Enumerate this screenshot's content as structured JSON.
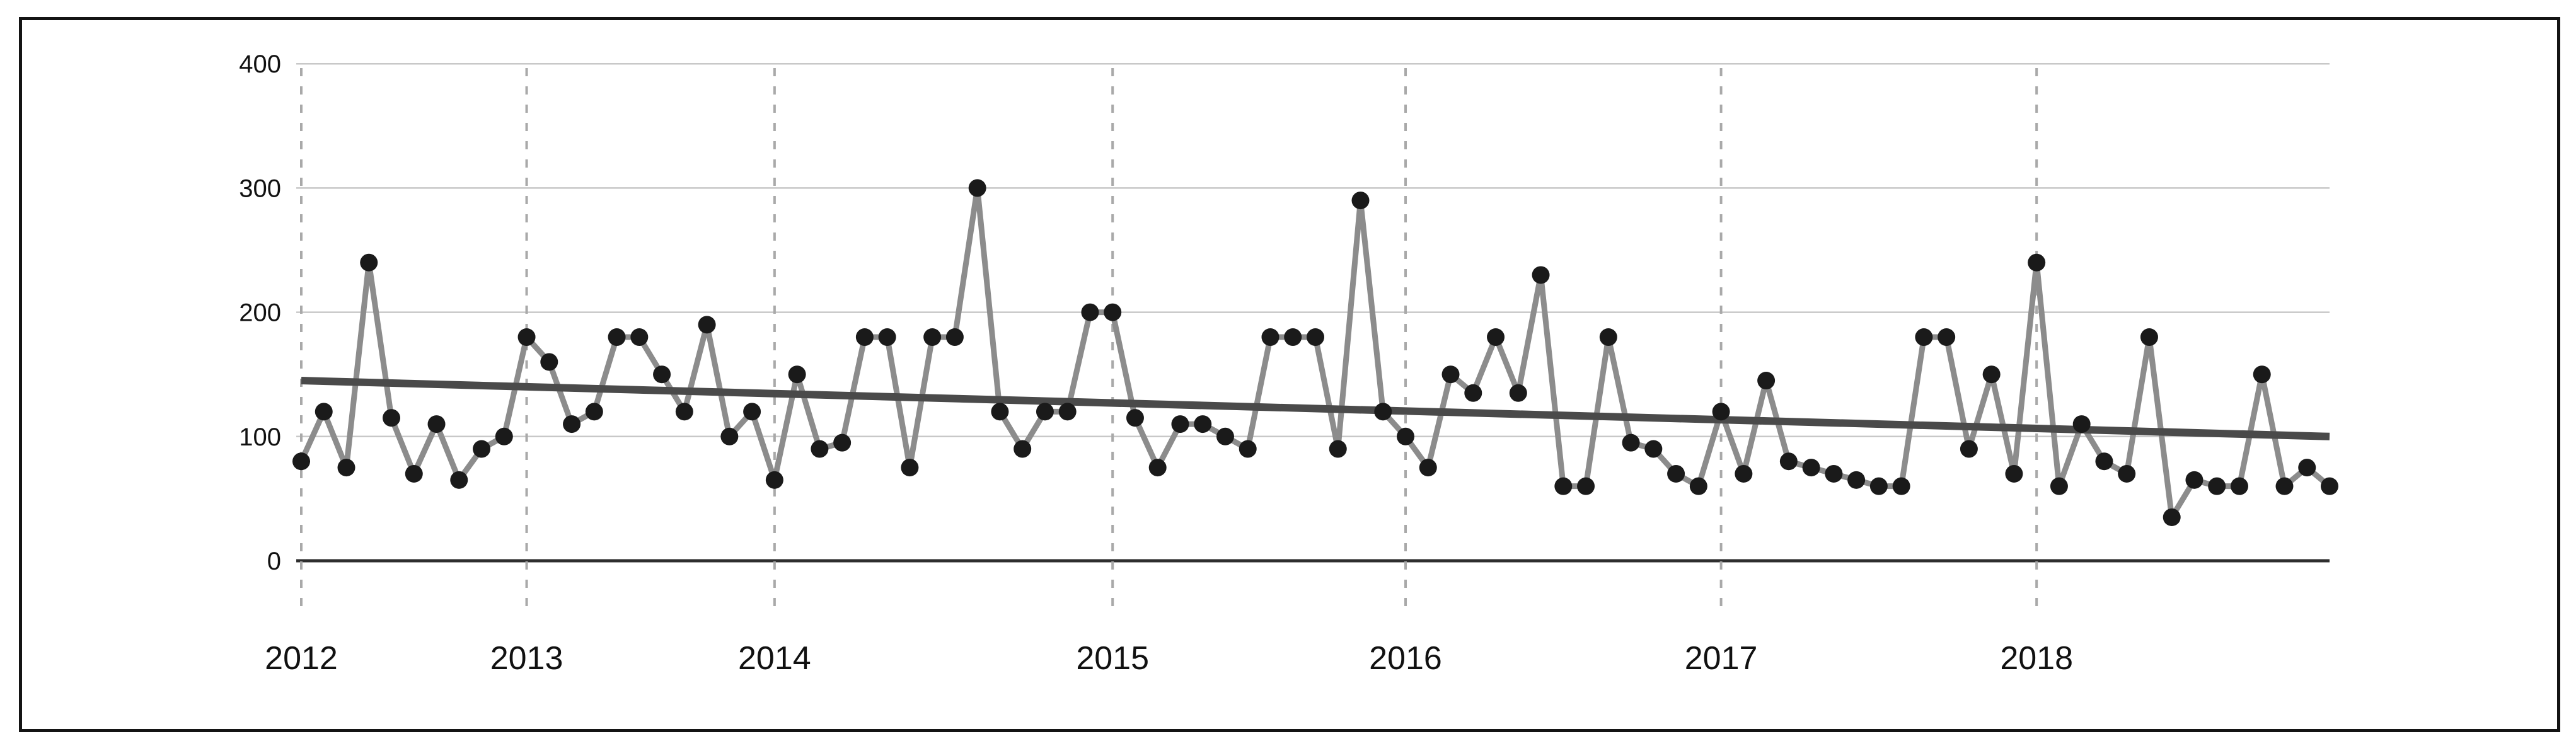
{
  "chart_data": {
    "type": "line",
    "title": "",
    "xlabel": "",
    "ylabel": "",
    "ylim": [
      0,
      400
    ],
    "ytick_labels": [
      "0",
      "100",
      "200",
      "300",
      "400"
    ],
    "ytick_values": [
      0,
      100,
      200,
      300,
      400
    ],
    "x_year_labels": [
      "2012",
      "2013",
      "2014",
      "2015",
      "2016",
      "2017",
      "2018"
    ],
    "year_start_indices": [
      0,
      10,
      21,
      36,
      49,
      63,
      77
    ],
    "values": [
      80,
      120,
      75,
      240,
      115,
      70,
      110,
      65,
      90,
      100,
      180,
      160,
      110,
      120,
      180,
      180,
      150,
      120,
      190,
      100,
      120,
      65,
      150,
      90,
      95,
      180,
      180,
      75,
      180,
      180,
      300,
      120,
      90,
      120,
      120,
      200,
      200,
      115,
      75,
      110,
      110,
      100,
      90,
      180,
      180,
      180,
      90,
      290,
      120,
      100,
      75,
      150,
      135,
      180,
      135,
      230,
      60,
      60,
      180,
      95,
      90,
      70,
      60,
      120,
      70,
      145,
      80,
      75,
      70,
      65,
      60,
      60,
      180,
      180,
      90,
      150,
      70,
      240,
      60,
      110,
      80,
      70,
      180,
      35,
      65,
      60,
      60,
      150,
      60,
      75,
      60
    ],
    "trend_line": {
      "type": "linear",
      "start_value": 145,
      "end_value": 100
    },
    "grid": {
      "horizontal_gridlines": true,
      "vertical_year_gridlines_dashed": true
    },
    "legend": {
      "visible": false
    }
  },
  "colors": {
    "background": "#ffffff",
    "frame_border": "#141414",
    "axis_zero_line": "#2e2e2e",
    "horizontal_gridline": "#c8c8c8",
    "year_dashed_gridline": "#a9a9a9",
    "series_line": "#8c8c8c",
    "data_point": "#1a1a1a",
    "trend_line": "#4a4a4a",
    "tick_label": "#111111"
  }
}
